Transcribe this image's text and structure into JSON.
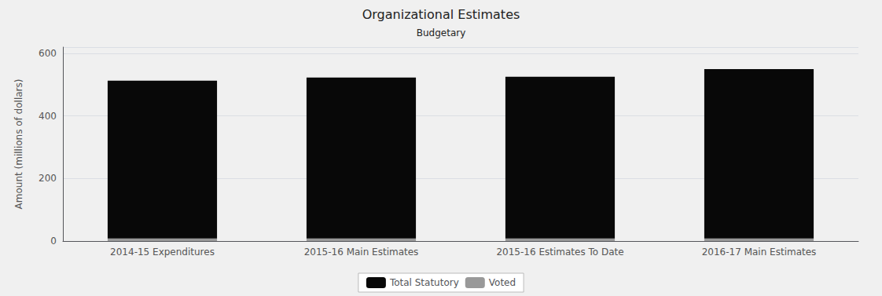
{
  "chart_data": {
    "type": "bar",
    "title": "Organizational Estimates",
    "subtitle": "Budgetary",
    "categories": [
      "2014-15 Expenditures",
      "2015-16 Main Estimates",
      "2015-16 Estimates To Date",
      "2016-17 Main Estimates"
    ],
    "series": [
      {
        "name": "Voted",
        "color": "#999999",
        "values": [
          8,
          8,
          8,
          8
        ]
      },
      {
        "name": "Total Statutory",
        "color": "#080808",
        "values": [
          505,
          515,
          517,
          542
        ]
      }
    ],
    "stacked": true,
    "ylabel": "Amount (millions of dollars)",
    "ylim": [
      0,
      620
    ],
    "yticks": [
      0,
      200,
      400,
      600
    ],
    "grid": true,
    "legend": "bottom"
  }
}
